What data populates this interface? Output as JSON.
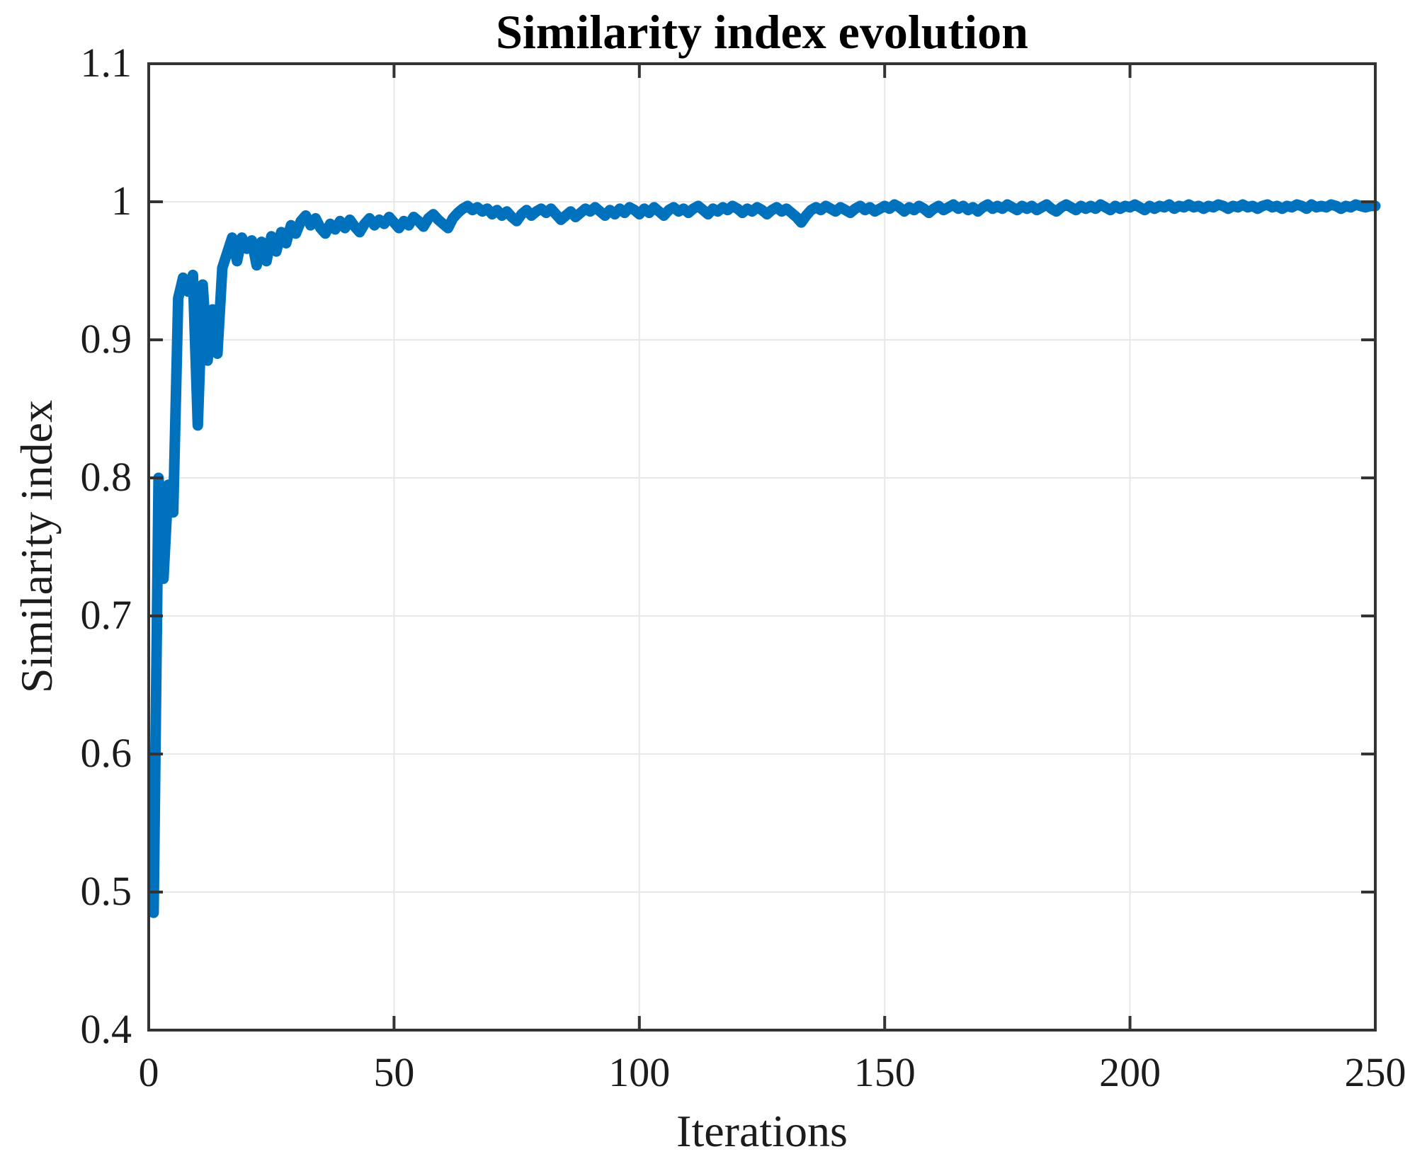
{
  "chart": {
    "title": "Similarity index evolution",
    "xlabel": "Iterations",
    "ylabel": "Similarity index"
  },
  "colors": {
    "line": "#0072BD",
    "axis": "#333333",
    "grid": "#e8e8e8",
    "tick_text": "#1c1c1c",
    "background": "#ffffff"
  },
  "chart_data": {
    "type": "line",
    "title": "Similarity index evolution",
    "xlabel": "Iterations",
    "ylabel": "Similarity index",
    "xlim": [
      0,
      250
    ],
    "ylim": [
      0.4,
      1.1
    ],
    "x_ticks": [
      0,
      50,
      100,
      150,
      200,
      250
    ],
    "x_tick_labels": [
      "0",
      "50",
      "100",
      "150",
      "200",
      "250"
    ],
    "y_ticks": [
      0.4,
      0.5,
      0.6,
      0.7,
      0.8,
      0.9,
      1.0,
      1.1
    ],
    "y_tick_labels": [
      "0.4",
      "0.5",
      "0.6",
      "0.7",
      "0.8",
      "0.9",
      "1",
      "1.1"
    ],
    "grid": true,
    "legend": null,
    "x_start": 1,
    "line_width": 15,
    "series": [
      {
        "name": "Similarity index",
        "color": "#0072BD",
        "values": [
          0.485,
          0.8,
          0.727,
          0.795,
          0.775,
          0.93,
          0.945,
          0.935,
          0.947,
          0.838,
          0.94,
          0.885,
          0.922,
          0.89,
          0.952,
          0.963,
          0.974,
          0.957,
          0.974,
          0.966,
          0.972,
          0.954,
          0.971,
          0.957,
          0.975,
          0.964,
          0.978,
          0.97,
          0.983,
          0.977,
          0.986,
          0.99,
          0.983,
          0.988,
          0.981,
          0.977,
          0.984,
          0.98,
          0.986,
          0.981,
          0.987,
          0.982,
          0.978,
          0.984,
          0.988,
          0.983,
          0.987,
          0.984,
          0.989,
          0.985,
          0.981,
          0.986,
          0.983,
          0.989,
          0.986,
          0.982,
          0.988,
          0.991,
          0.987,
          0.984,
          0.981,
          0.988,
          0.992,
          0.995,
          0.997,
          0.994,
          0.996,
          0.993,
          0.995,
          0.991,
          0.994,
          0.99,
          0.993,
          0.989,
          0.986,
          0.991,
          0.994,
          0.99,
          0.993,
          0.995,
          0.992,
          0.995,
          0.991,
          0.987,
          0.99,
          0.993,
          0.989,
          0.992,
          0.995,
          0.993,
          0.996,
          0.993,
          0.99,
          0.994,
          0.991,
          0.995,
          0.992,
          0.996,
          0.994,
          0.991,
          0.995,
          0.992,
          0.996,
          0.993,
          0.99,
          0.994,
          0.996,
          0.993,
          0.995,
          0.992,
          0.995,
          0.997,
          0.994,
          0.991,
          0.995,
          0.993,
          0.996,
          0.994,
          0.997,
          0.995,
          0.992,
          0.995,
          0.993,
          0.996,
          0.994,
          0.991,
          0.994,
          0.996,
          0.993,
          0.995,
          0.992,
          0.989,
          0.985,
          0.99,
          0.994,
          0.996,
          0.994,
          0.997,
          0.995,
          0.993,
          0.996,
          0.994,
          0.992,
          0.995,
          0.997,
          0.994,
          0.996,
          0.993,
          0.995,
          0.997,
          0.995,
          0.998,
          0.996,
          0.993,
          0.996,
          0.994,
          0.997,
          0.995,
          0.992,
          0.995,
          0.997,
          0.994,
          0.996,
          0.998,
          0.995,
          0.997,
          0.994,
          0.996,
          0.993,
          0.996,
          0.998,
          0.995,
          0.997,
          0.995,
          0.998,
          0.996,
          0.994,
          0.997,
          0.995,
          0.997,
          0.994,
          0.996,
          0.998,
          0.995,
          0.993,
          0.996,
          0.998,
          0.996,
          0.994,
          0.997,
          0.995,
          0.997,
          0.995,
          0.998,
          0.996,
          0.994,
          0.997,
          0.995,
          0.997,
          0.996,
          0.998,
          0.996,
          0.994,
          0.997,
          0.995,
          0.997,
          0.996,
          0.998,
          0.995,
          0.997,
          0.996,
          0.998,
          0.996,
          0.997,
          0.995,
          0.997,
          0.996,
          0.998,
          0.997,
          0.995,
          0.997,
          0.996,
          0.998,
          0.996,
          0.997,
          0.995,
          0.997,
          0.998,
          0.996,
          0.997,
          0.995,
          0.997,
          0.996,
          0.998,
          0.997,
          0.995,
          0.998,
          0.996,
          0.997,
          0.996,
          0.998,
          0.997,
          0.995,
          0.997,
          0.996,
          0.998,
          0.997,
          0.996,
          0.997,
          0.997
        ]
      }
    ]
  }
}
